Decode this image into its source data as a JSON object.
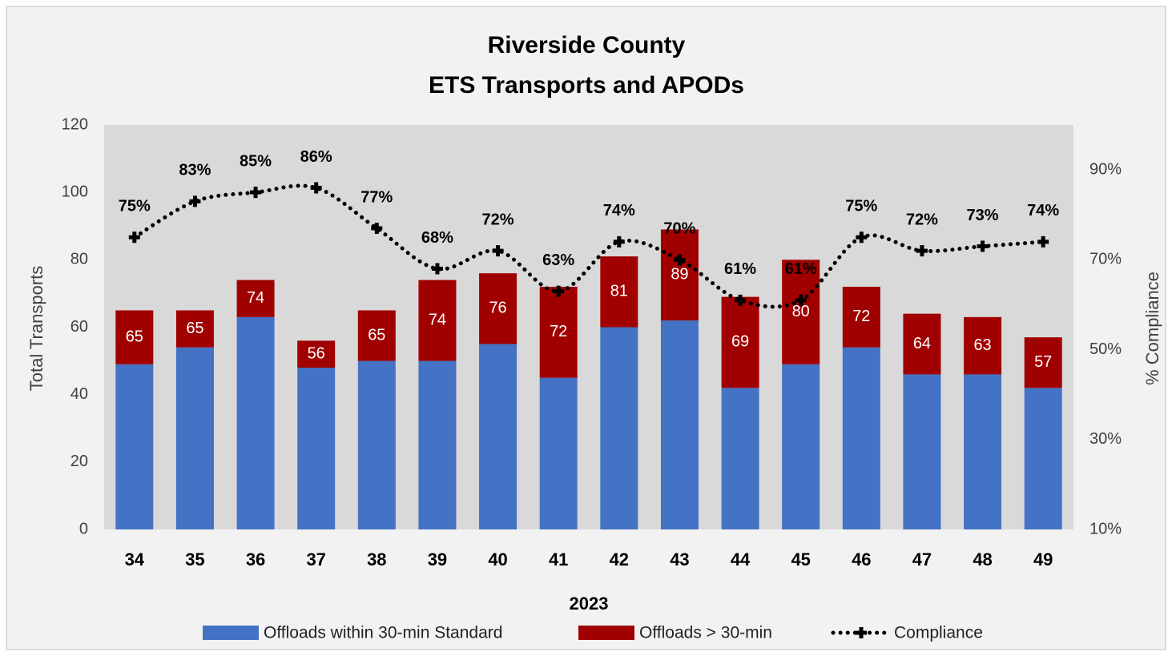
{
  "chart_data": {
    "type": "bar",
    "stacked": true,
    "title": "Riverside County",
    "subtitle": "ETS Transports  and APODs",
    "x_label": "2023",
    "y_label": "Total  Transports",
    "y2_label": "% Compliance",
    "categories": [
      "34",
      "35",
      "36",
      "37",
      "38",
      "39",
      "40",
      "41",
      "42",
      "43",
      "44",
      "45",
      "46",
      "47",
      "48",
      "49"
    ],
    "series": [
      {
        "name": "Offloads within 30-min Standard",
        "color": "#4472c4",
        "type": "bar",
        "values": [
          49,
          54,
          63,
          48,
          50,
          50,
          55,
          45,
          60,
          62,
          42,
          49,
          54,
          46,
          46,
          42
        ]
      },
      {
        "name": "Offloads > 30-min",
        "color": "#a00000",
        "type": "bar",
        "values": [
          16,
          11,
          11,
          8,
          15,
          24,
          21,
          27,
          21,
          27,
          27,
          31,
          18,
          18,
          17,
          15
        ]
      },
      {
        "name": "Compliance",
        "color": "#000000",
        "type": "line",
        "axis": "y2",
        "values": [
          75,
          83,
          85,
          86,
          77,
          68,
          72,
          63,
          74,
          70,
          61,
          61,
          75,
          72,
          73,
          74
        ],
        "value_labels": [
          "75%",
          "83%",
          "85%",
          "86%",
          "77%",
          "68%",
          "72%",
          "63%",
          "74%",
          "70%",
          "61%",
          "61%",
          "75%",
          "72%",
          "73%",
          "74%"
        ]
      }
    ],
    "totals": [
      65,
      65,
      74,
      56,
      65,
      74,
      76,
      72,
      81,
      89,
      69,
      80,
      72,
      64,
      63,
      57
    ],
    "ylim": [
      0,
      120
    ],
    "yticks": [
      0,
      20,
      40,
      60,
      80,
      100,
      120
    ],
    "y2lim": [
      10,
      100
    ],
    "y2ticks": [
      {
        "value": 10,
        "label": "10%"
      },
      {
        "value": 30,
        "label": "30%"
      },
      {
        "value": 50,
        "label": "50%"
      },
      {
        "value": 70,
        "label": "70%"
      },
      {
        "value": 90,
        "label": "90%"
      }
    ]
  }
}
